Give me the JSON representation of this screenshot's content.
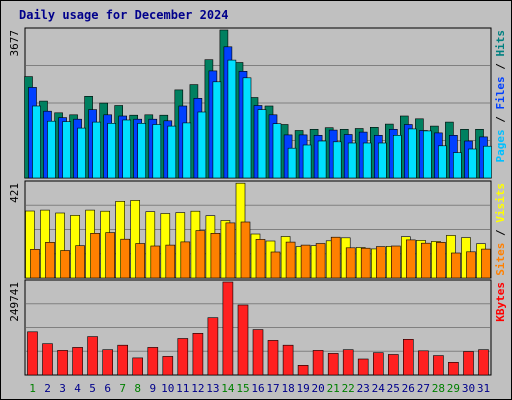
{
  "chart_data": {
    "type": "bar",
    "title": "Daily usage for December 2024",
    "categories": [
      "1",
      "2",
      "3",
      "4",
      "5",
      "6",
      "7",
      "8",
      "9",
      "10",
      "11",
      "12",
      "13",
      "14",
      "15",
      "16",
      "17",
      "18",
      "19",
      "20",
      "21",
      "22",
      "23",
      "24",
      "25",
      "26",
      "27",
      "28",
      "29",
      "30",
      "31"
    ],
    "weekend_days": [
      "1",
      "7",
      "8",
      "14",
      "15",
      "21",
      "22",
      "28",
      "29"
    ],
    "grid": true,
    "panels": [
      {
        "name": "hits-files-pages",
        "ymax_label": "3677",
        "ylim": [
          0,
          3677
        ],
        "side_labels": [
          {
            "text": "Pages",
            "color": "#00c0ff"
          },
          {
            "text": " / ",
            "color": "#000000"
          },
          {
            "text": "Files",
            "color": "#0040ff"
          },
          {
            "text": " / ",
            "color": "#000000"
          },
          {
            "text": "Hits",
            "color": "#008080"
          }
        ],
        "series": [
          {
            "name": "Hits",
            "color": "#008060",
            "values": [
              2520,
              1910,
              1620,
              1570,
              2030,
              1860,
              1800,
              1560,
              1570,
              1560,
              2190,
              2320,
              2940,
              3677,
              2870,
              2000,
              1790,
              1330,
              1180,
              1210,
              1250,
              1210,
              1230,
              1260,
              1340,
              1540,
              1470,
              1290,
              1390,
              1210,
              1210
            ]
          },
          {
            "name": "Files",
            "color": "#0040ff",
            "values": [
              2250,
              1660,
              1500,
              1460,
              1700,
              1570,
              1540,
              1460,
              1460,
              1420,
              1790,
              1980,
              2660,
              3260,
              2650,
              1800,
              1570,
              1070,
              1070,
              1060,
              1190,
              1080,
              1140,
              1060,
              1210,
              1330,
              1180,
              1120,
              1060,
              920,
              1020
            ]
          },
          {
            "name": "Pages",
            "color": "#00e0ff",
            "values": [
              1790,
              1410,
              1400,
              1240,
              1390,
              1360,
              1440,
              1360,
              1330,
              1290,
              1370,
              1640,
              2390,
              2930,
              2490,
              1700,
              1350,
              740,
              820,
              920,
              900,
              870,
              870,
              870,
              1060,
              1220,
              1170,
              800,
              630,
              720,
              790
            ]
          }
        ]
      },
      {
        "name": "visits-sites",
        "ymax_label": "421",
        "ylim": [
          0,
          421
        ],
        "side_labels": [
          {
            "text": "Sites",
            "color": "#ff8000"
          },
          {
            "text": " / ",
            "color": "#000000"
          },
          {
            "text": "Visits",
            "color": "#ffff00"
          }
        ],
        "series": [
          {
            "name": "Visits",
            "color": "#ffff00",
            "values": [
              297,
              301,
              288,
              278,
              301,
              296,
              340,
              344,
              294,
              286,
              290,
              296,
              276,
              255,
              420,
              195,
              164,
              184,
              139,
              143,
              165,
              178,
              135,
              129,
              140,
              183,
              167,
              162,
              189,
              179,
              152
            ]
          },
          {
            "name": "Sites",
            "color": "#ff8000",
            "values": [
              127,
              158,
              122,
              143,
              198,
              201,
              172,
              153,
              142,
              146,
              160,
              210,
              198,
              244,
              248,
              171,
              115,
              159,
              146,
              153,
              181,
              134,
              132,
              139,
              142,
              169,
              154,
              158,
              111,
              116,
              128
            ]
          }
        ]
      },
      {
        "name": "kbytes",
        "ymax_label": "249741",
        "ylim": [
          0,
          249741
        ],
        "side_labels": [
          {
            "text": "KBytes",
            "color": "#ff0000"
          }
        ],
        "series": [
          {
            "name": "KBytes",
            "color": "#ff2020",
            "values": [
              116000,
              84000,
              66000,
              74000,
              103000,
              68000,
              80000,
              46000,
              74000,
              50000,
              98000,
              112000,
              154000,
              249741,
              188000,
              122000,
              93000,
              80000,
              26000,
              66000,
              58000,
              68000,
              43000,
              60000,
              55000,
              96000,
              65000,
              52000,
              34000,
              63000,
              68000
            ]
          }
        ]
      }
    ]
  }
}
